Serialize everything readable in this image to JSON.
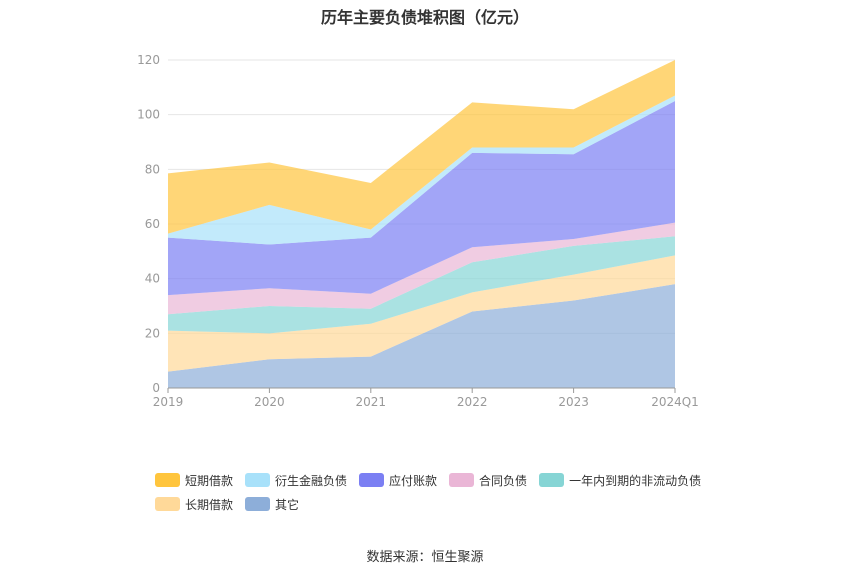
{
  "chart_data": {
    "type": "area",
    "stacked": true,
    "title": "历年主要负债堆积图（亿元）",
    "categories": [
      "2019",
      "2020",
      "2021",
      "2022",
      "2023",
      "2024Q1"
    ],
    "ylim": [
      0,
      120
    ],
    "yticks": [
      0,
      20,
      40,
      60,
      80,
      100,
      120
    ],
    "grid": true,
    "legend_position": "bottom",
    "series": [
      {
        "name": "其它",
        "values": [
          6,
          10.5,
          11.5,
          28,
          32,
          38
        ],
        "color": "#8daed9"
      },
      {
        "name": "长期借款",
        "values": [
          15,
          9.5,
          12,
          7,
          9.5,
          10.5
        ],
        "color": "#ffd999"
      },
      {
        "name": "一年内到期的非流动负债",
        "values": [
          6,
          10,
          5.5,
          11,
          10.5,
          7
        ],
        "color": "#86d5d5"
      },
      {
        "name": "合同负债",
        "values": [
          7,
          6.5,
          5.5,
          5.5,
          2.5,
          5
        ],
        "color": "#eab6d6"
      },
      {
        "name": "应付账款",
        "values": [
          21,
          16,
          20.5,
          34.5,
          31,
          44.5
        ],
        "color": "#7b7ff3"
      },
      {
        "name": "衍生金融负债",
        "values": [
          1.5,
          14.5,
          3,
          2,
          2.5,
          2
        ],
        "color": "#a8e1fa"
      },
      {
        "name": "短期借款",
        "values": [
          22,
          15.5,
          17,
          16.5,
          14,
          13
        ],
        "color": "#ffc53d"
      }
    ]
  },
  "legend_order": [
    "短期借款",
    "衍生金融负债",
    "应付账款",
    "合同负债",
    "一年内到期的非流动负债",
    "长期借款",
    "其它"
  ],
  "source": "数据来源：恒生聚源"
}
